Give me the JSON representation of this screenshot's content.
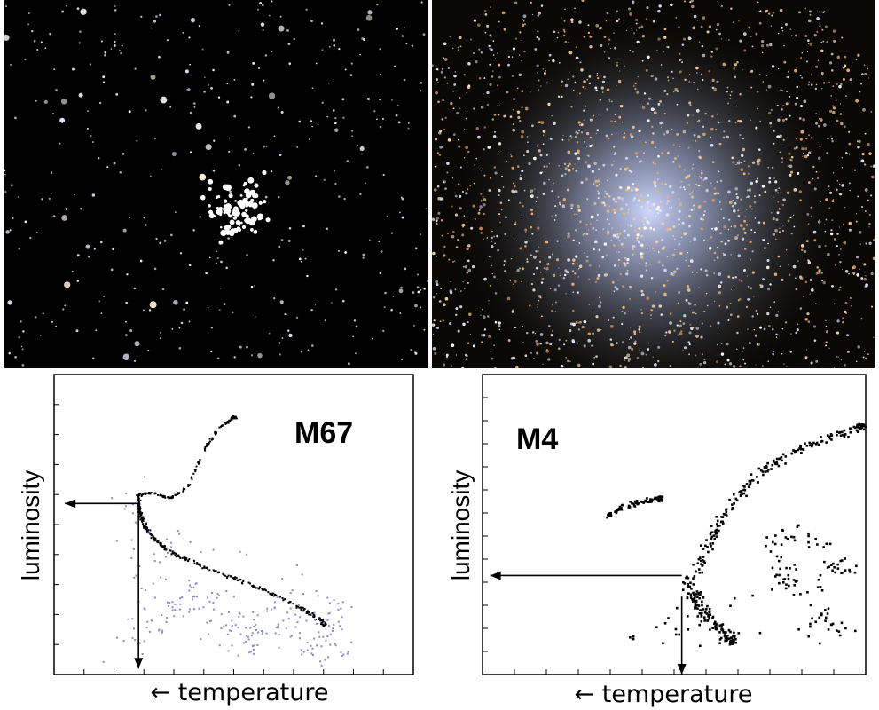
{
  "photos": [
    {
      "label": "",
      "background": "#000000",
      "star_tints": [
        "#ffffff",
        "#fff6dc",
        "#e8efff"
      ]
    },
    {
      "label": "",
      "background": "#0a0805",
      "core_color": "#cfd8ff",
      "star_tints": [
        "#ffd9a0",
        "#e0e6ff",
        "#ffffff",
        "#f5b46a"
      ]
    }
  ],
  "chart_data": [
    {
      "type": "scatter",
      "title": "M67",
      "xlabel": "← temperature",
      "ylabel": "luminosity",
      "grid": false,
      "xlim": [
        0,
        10
      ],
      "ylim": [
        0,
        10
      ],
      "annotations": [
        {
          "kind": "arrow",
          "from": [
            2.35,
            5.7
          ],
          "to": [
            0.3,
            5.7
          ]
        },
        {
          "kind": "arrow",
          "from": [
            2.35,
            5.7
          ],
          "to": [
            2.35,
            0.2
          ]
        }
      ],
      "series": [
        {
          "role": "main-sequence",
          "points": [
            [
              2.3,
              6.0
            ],
            [
              2.35,
              5.6
            ],
            [
              2.4,
              5.3
            ],
            [
              2.5,
              5.0
            ],
            [
              2.6,
              4.8
            ],
            [
              2.8,
              4.5
            ],
            [
              3.1,
              4.2
            ],
            [
              3.5,
              3.95
            ],
            [
              4.0,
              3.7
            ],
            [
              4.6,
              3.4
            ],
            [
              5.3,
              3.1
            ],
            [
              6.0,
              2.75
            ],
            [
              6.7,
              2.35
            ],
            [
              7.2,
              2.0
            ],
            [
              7.5,
              1.7
            ]
          ],
          "spread": 0.08,
          "color": "#000000"
        },
        {
          "role": "subgiant-branch",
          "points": [
            [
              2.3,
              6.0
            ],
            [
              2.7,
              6.1
            ],
            [
              3.2,
              5.9
            ],
            [
              3.7,
              6.3
            ],
            [
              4.2,
              7.6
            ],
            [
              4.6,
              8.3
            ],
            [
              5.0,
              8.6
            ]
          ],
          "spread": 0.06,
          "color": "#000000"
        },
        {
          "role": "field-stars",
          "points": [
            [
              1.8,
              6.5
            ],
            [
              2.5,
              4.3
            ],
            [
              3.0,
              1.5
            ],
            [
              3.8,
              3.0
            ],
            [
              4.5,
              1.2
            ],
            [
              5.1,
              2.2
            ],
            [
              5.8,
              1.3
            ],
            [
              6.3,
              2.0
            ],
            [
              6.9,
              1.0
            ],
            [
              7.6,
              1.4
            ],
            [
              8.0,
              2.4
            ],
            [
              2.9,
              5.0
            ],
            [
              2.0,
              1.0
            ],
            [
              3.3,
              2.2
            ],
            [
              4.2,
              2.8
            ],
            [
              5.5,
              0.8
            ],
            [
              6.6,
              3.1
            ],
            [
              7.9,
              0.9
            ]
          ],
          "spread": 0.9,
          "color": "#8a8acc"
        }
      ]
    },
    {
      "type": "scatter",
      "title": "M4",
      "xlabel": "← temperature",
      "ylabel": "luminosity",
      "grid": false,
      "xlim": [
        0,
        10
      ],
      "ylim": [
        0,
        10
      ],
      "annotations": [
        {
          "kind": "arrow",
          "from": [
            5.2,
            3.3
          ],
          "to": [
            0.2,
            3.3
          ]
        },
        {
          "kind": "arrow",
          "from": [
            5.2,
            2.6
          ],
          "to": [
            5.2,
            0.0
          ]
        }
      ],
      "series": [
        {
          "role": "main-sequence",
          "points": [
            [
              5.4,
              3.2
            ],
            [
              5.5,
              2.8
            ],
            [
              5.6,
              2.4
            ],
            [
              5.8,
              2.0
            ],
            [
              6.1,
              1.6
            ],
            [
              6.4,
              1.2
            ]
          ],
          "spread": 0.35,
          "color": "#000000"
        },
        {
          "role": "red-giant-branch",
          "points": [
            [
              5.6,
              3.4
            ],
            [
              5.8,
              4.2
            ],
            [
              6.1,
              5.0
            ],
            [
              6.5,
              5.8
            ],
            [
              7.0,
              6.5
            ],
            [
              7.6,
              7.1
            ],
            [
              8.3,
              7.6
            ],
            [
              9.0,
              7.9
            ],
            [
              9.8,
              8.3
            ]
          ],
          "spread": 0.22,
          "color": "#000000"
        },
        {
          "role": "horizontal-branch",
          "points": [
            [
              3.2,
              5.3
            ],
            [
              3.6,
              5.6
            ],
            [
              4.1,
              5.8
            ],
            [
              4.6,
              5.9
            ]
          ],
          "spread": 0.12,
          "color": "#000000"
        },
        {
          "role": "scattered",
          "points": [
            [
              8.5,
              1.2
            ],
            [
              9.0,
              3.8
            ],
            [
              9.5,
              3.5
            ],
            [
              8.2,
              5.0
            ],
            [
              7.5,
              4.3
            ],
            [
              8.8,
              2.0
            ],
            [
              9.7,
              1.5
            ],
            [
              3.8,
              1.3
            ],
            [
              7.9,
              3.1
            ]
          ],
          "spread": 0.5,
          "color": "#000000"
        }
      ]
    }
  ]
}
